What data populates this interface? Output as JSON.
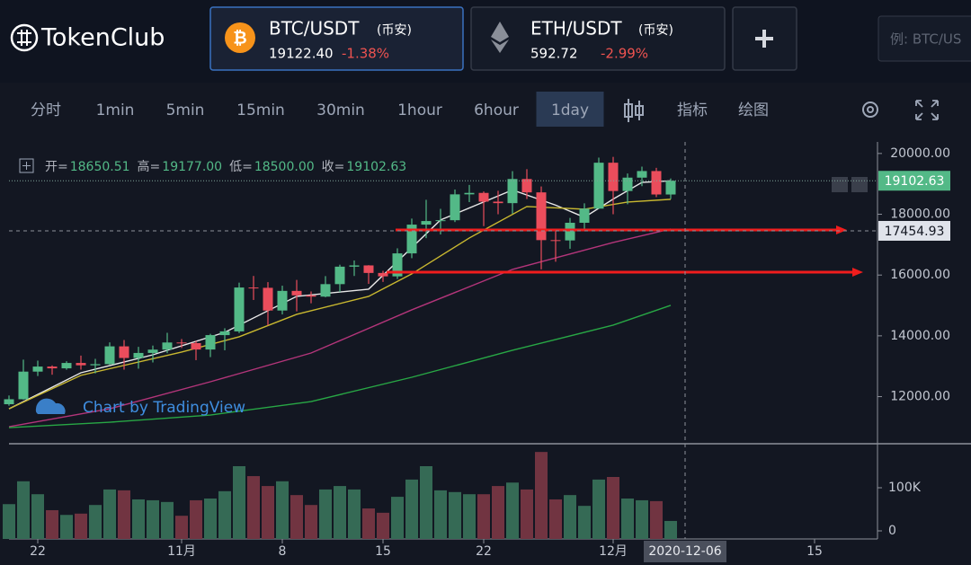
{
  "header": {
    "logo": "TokenClub",
    "tabs": [
      {
        "pair": "BTC/USDT",
        "exchange": "(币安)",
        "price": "19122.40",
        "change": "-1.38%"
      },
      {
        "pair": "ETH/USDT",
        "exchange": "(币安)",
        "price": "592.72",
        "change": "-2.99%"
      }
    ],
    "search_placeholder": "例: BTC/US"
  },
  "toolbar": {
    "intervals": [
      "分时",
      "1min",
      "5min",
      "15min",
      "30min",
      "1hour",
      "6hour",
      "1day"
    ],
    "active_interval": 7,
    "tools": [
      "指标",
      "绘图"
    ]
  },
  "chart_data": {
    "type": "candlestick",
    "ohlc_legend": [
      {
        "label": "开=",
        "value": "18650.51"
      },
      {
        "label": "高=",
        "value": "19177.00"
      },
      {
        "label": "低=",
        "value": "18500.00"
      },
      {
        "label": "收=",
        "value": "19102.63"
      }
    ],
    "watermark": "Chart by TradingView",
    "x": [
      "2020-10-20",
      "2020-10-21",
      "2020-10-22",
      "2020-10-23",
      "2020-10-24",
      "2020-10-25",
      "2020-10-26",
      "2020-10-27",
      "2020-10-28",
      "2020-10-29",
      "2020-10-30",
      "2020-10-31",
      "2020-11-01",
      "2020-11-02",
      "2020-11-03",
      "2020-11-04",
      "2020-11-05",
      "2020-11-06",
      "2020-11-07",
      "2020-11-08",
      "2020-11-09",
      "2020-11-10",
      "2020-11-11",
      "2020-11-12",
      "2020-11-13",
      "2020-11-14",
      "2020-11-15",
      "2020-11-16",
      "2020-11-17",
      "2020-11-18",
      "2020-11-19",
      "2020-11-20",
      "2020-11-21",
      "2020-11-22",
      "2020-11-23",
      "2020-11-24",
      "2020-11-25",
      "2020-11-26",
      "2020-11-27",
      "2020-11-28",
      "2020-11-29",
      "2020-11-30",
      "2020-12-01",
      "2020-12-02",
      "2020-12-03",
      "2020-12-04",
      "2020-12-05"
    ],
    "open": [
      11750,
      11914,
      12823,
      12989,
      12931,
      13108,
      13031,
      13068,
      13654,
      13271,
      13437,
      13546,
      13781,
      13761,
      13550,
      14024,
      14147,
      15590,
      15580,
      14833,
      15479,
      15332,
      15290,
      15701,
      16276,
      16317,
      16069,
      15957,
      16713,
      17659,
      17777,
      17804,
      18655,
      18703,
      18415,
      18366,
      19160,
      18720,
      17149,
      17139,
      17720,
      18185,
      19696,
      18765,
      19205,
      19422,
      18650.51
    ],
    "high": [
      12037,
      13217,
      13185,
      13027,
      13165,
      13350,
      13244,
      13785,
      13863,
      13638,
      13680,
      14100,
      13895,
      13830,
      14066,
      14250,
      15750,
      15970,
      15767,
      15650,
      15840,
      15460,
      15965,
      16340,
      16480,
      16326,
      16139,
      16880,
      17858,
      18476,
      18179,
      18815,
      18965,
      18750,
      18773,
      19418,
      19484,
      18915,
      17457,
      17880,
      18360,
      19864,
      19888,
      19342,
      19567,
      19527,
      19177
    ],
    "low": [
      11700,
      11900,
      12678,
      12721,
      12885,
      12888,
      12765,
      13050,
      12888,
      12920,
      13125,
      13430,
      13600,
      13200,
      13300,
      13525,
      14090,
      15180,
      14344,
      14705,
      14805,
      15071,
      15270,
      15440,
      15970,
      15710,
      15774,
      15870,
      16555,
      17214,
      17335,
      17744,
      18400,
      17610,
      18000,
      18018,
      18500,
      16188,
      16438,
      16865,
      17517,
      18184,
      18001,
      18330,
      18925,
      18565,
      18500
    ],
    "close": [
      11914,
      12823,
      12989,
      12931,
      13108,
      13031,
      13068,
      13654,
      13271,
      13437,
      13546,
      13781,
      13761,
      13550,
      14024,
      14147,
      15590,
      15580,
      14833,
      15479,
      15332,
      15290,
      15701,
      16276,
      16317,
      16069,
      15957,
      16713,
      17659,
      17777,
      17804,
      18655,
      18703,
      18415,
      18366,
      19160,
      18720,
      17149,
      17139,
      17720,
      18185,
      19696,
      18765,
      19205,
      19422,
      18651,
      19102.63
    ],
    "volume": [
      62000,
      115000,
      85000,
      48000,
      37000,
      40000,
      60000,
      96000,
      94000,
      73000,
      71000,
      67000,
      35000,
      71000,
      75000,
      92000,
      150000,
      127000,
      104000,
      115000,
      83000,
      60000,
      96000,
      104000,
      96000,
      52000,
      42000,
      79000,
      119000,
      150000,
      94000,
      90000,
      85000,
      85000,
      104000,
      112000,
      96000,
      183000,
      73000,
      83000,
      58000,
      119000,
      125000,
      75000,
      71000,
      69000,
      23000
    ],
    "up_color": "#53b987",
    "down_color": "#eb4d5c",
    "volume_up_color": "#356a55",
    "volume_down_color": "#713441",
    "ma_lines": [
      {
        "color": "#e8e8e8",
        "x": [
          "2020-10-20",
          "2020-10-25",
          "2020-10-30",
          "2020-11-04",
          "2020-11-09",
          "2020-11-14",
          "2020-11-19",
          "2020-11-24",
          "2020-11-27",
          "2020-11-29",
          "2020-12-01",
          "2020-12-03",
          "2020-12-05"
        ],
        "values": [
          11600,
          12785,
          13376,
          14115,
          15300,
          15535,
          17812,
          18800,
          18300,
          17900,
          18500,
          19050,
          19100
        ]
      },
      {
        "color": "#c9b830",
        "x": [
          "2020-10-20",
          "2020-10-25",
          "2020-11-01",
          "2020-11-05",
          "2020-11-09",
          "2020-11-14",
          "2020-11-17",
          "2020-11-21",
          "2020-11-25",
          "2020-11-29",
          "2020-12-02",
          "2020-12-05"
        ],
        "values": [
          11600,
          12700,
          13465,
          13968,
          14707,
          15298,
          16038,
          17220,
          18255,
          18167,
          18403,
          18492
        ]
      },
      {
        "color": "#b3357a",
        "x": [
          "2020-10-20",
          "2020-10-27",
          "2020-11-03",
          "2020-11-10",
          "2020-11-17",
          "2020-11-24",
          "2020-12-01",
          "2020-12-05"
        ],
        "values": [
          11010,
          11600,
          12489,
          13435,
          14855,
          16186,
          17073,
          17516
        ]
      },
      {
        "color": "#28a745",
        "x": [
          "2020-10-20",
          "2020-10-27",
          "2020-11-03",
          "2020-11-10",
          "2020-11-17",
          "2020-11-24",
          "2020-12-01",
          "2020-12-05"
        ],
        "values": [
          10981,
          11158,
          11395,
          11838,
          12637,
          13524,
          14352,
          15003
        ]
      }
    ],
    "xlim": [
      "2020-10-20",
      "2020-12-19"
    ],
    "xticks": [
      {
        "value": "2020-10-22",
        "label": "22"
      },
      {
        "value": "2020-11-01",
        "label": "11月"
      },
      {
        "value": "2020-11-08",
        "label": "8"
      },
      {
        "value": "2020-11-15",
        "label": "15"
      },
      {
        "value": "2020-11-22",
        "label": "22"
      },
      {
        "value": "2020-12-01",
        "label": "12月"
      },
      {
        "value": "2020-12-15",
        "label": "15"
      }
    ],
    "ylim": [
      10450,
      20380
    ],
    "yticks": [
      {
        "value": 12000,
        "label": "12000.00"
      },
      {
        "value": 14000,
        "label": "14000.00"
      },
      {
        "value": 16000,
        "label": "16000.00"
      },
      {
        "value": 18000,
        "label": "18000.00"
      },
      {
        "value": 20000,
        "label": "20000.00"
      }
    ],
    "volume_ylim": [
      -18750,
      200000
    ],
    "volume_yticks": [
      {
        "value": 0,
        "label": "0"
      },
      {
        "value": 100000,
        "label": "100K"
      }
    ],
    "last_price": {
      "value": 19102.63,
      "label": "19102.63"
    },
    "crosshair": {
      "x": "2020-12-06",
      "y": {
        "value": 17454.93,
        "label": "17454.93"
      }
    }
  }
}
